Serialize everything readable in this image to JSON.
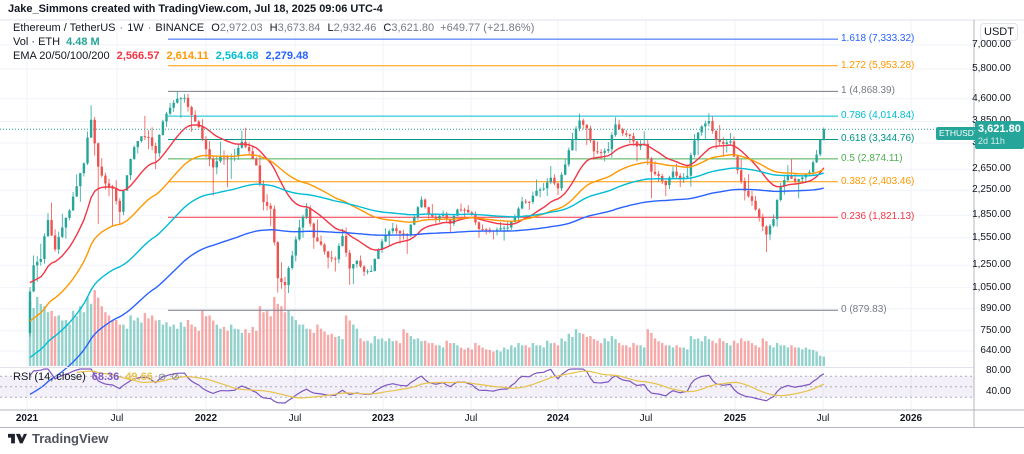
{
  "attribution": "Jake_Simmons created with TradingView.com, Jul 18, 2025 09:06 UTC-4",
  "legend": {
    "symbol_title": "Ethereum / TetherUS",
    "sep": "·",
    "interval": "1W",
    "exchange": "BINANCE",
    "ohlc": [
      [
        "O",
        "2,972.03"
      ],
      [
        "H",
        "3,673.84"
      ],
      [
        "L",
        "2,932.46"
      ],
      [
        "C",
        "3,621.80"
      ]
    ],
    "change": "+649.77 (+21.86%)",
    "volume_row": {
      "label": "Vol · ETH",
      "value": "4.48 M",
      "color": "#26a69a"
    },
    "ema_row": {
      "label": "EMA 20/50/100/200",
      "values": [
        {
          "text": "2,566.57",
          "color": "#f23645"
        },
        {
          "text": "2,614.11",
          "color": "#ff9800"
        },
        {
          "text": "2,564.68",
          "color": "#00bcd4"
        },
        {
          "text": "2,279.48",
          "color": "#2962ff"
        }
      ]
    }
  },
  "rsi_legend": {
    "label": "RSI (14, close)",
    "values": [
      {
        "text": "68.36",
        "color": "#7e57c2"
      },
      {
        "text": "49.66",
        "color": "#e8c34a"
      }
    ],
    "icons": [
      "visibility-toggle",
      "visibility-toggle"
    ]
  },
  "fib_levels": [
    {
      "label": "1.618 (7,333.32)",
      "value": 7333.32,
      "color": "#2962ff"
    },
    {
      "label": "1.272 (5,953.28)",
      "value": 5953.28,
      "color": "#ff9800"
    },
    {
      "label": "1 (4,868.39)",
      "value": 4868.39,
      "color": "#787b86"
    },
    {
      "label": "0.786 (4,014.84)",
      "value": 4014.84,
      "color": "#00bcd4"
    },
    {
      "label": "0.618 (3,344.76)",
      "value": 3344.76,
      "color": "#009688"
    },
    {
      "label": "0.5 (2,874.11)",
      "value": 2874.11,
      "color": "#4caf50"
    },
    {
      "label": "0.382 (2,403.46)",
      "value": 2403.46,
      "color": "#ff9800"
    },
    {
      "label": "0.236 (1,821.13)",
      "value": 1821.13,
      "color": "#f23645"
    },
    {
      "label": "0 (879.83)",
      "value": 879.83,
      "color": "#787b86"
    }
  ],
  "price_axis": {
    "currency": "USDT",
    "ticks": [
      {
        "label": "7,000.00",
        "value": 7000
      },
      {
        "label": "5,800.00",
        "value": 5800
      },
      {
        "label": "4,600.00",
        "value": 4600
      },
      {
        "label": "3,850.00",
        "value": 3850
      },
      {
        "label": "3,250.00",
        "value": 3250
      },
      {
        "label": "2,650.00",
        "value": 2650
      },
      {
        "label": "2,250.00",
        "value": 2250
      },
      {
        "label": "1,850.00",
        "value": 1850
      },
      {
        "label": "1,550.00",
        "value": 1550
      },
      {
        "label": "1,250.00",
        "value": 1250
      },
      {
        "label": "1,050.00",
        "value": 1050
      },
      {
        "label": "890.00",
        "value": 890
      },
      {
        "label": "750.00",
        "value": 750
      },
      {
        "label": "640.00",
        "value": 640
      }
    ],
    "rsi_ticks": [
      {
        "label": "80.00",
        "value": 80
      },
      {
        "label": "40.00",
        "value": 40
      }
    ],
    "last": {
      "symbol": "ETHUSDT",
      "price": "3,621.80",
      "countdown": "2d 11h",
      "color": "#26a69a"
    }
  },
  "time_axis": [
    {
      "label": "2021",
      "year": true
    },
    {
      "label": "Jul",
      "year": false
    },
    {
      "label": "2022",
      "year": true
    },
    {
      "label": "Jul",
      "year": false
    },
    {
      "label": "2023",
      "year": true
    },
    {
      "label": "Jul",
      "year": false
    },
    {
      "label": "2024",
      "year": true
    },
    {
      "label": "Jul",
      "year": false
    },
    {
      "label": "2025",
      "year": true
    },
    {
      "label": "Jul",
      "year": false
    },
    {
      "label": "2026",
      "year": true
    }
  ],
  "footer": {
    "name": "TradingView"
  },
  "colors": {
    "up": "#26a69a",
    "down": "#ef5350",
    "vol_up": "rgba(38,166,154,0.5)",
    "vol_down": "rgba(239,83,80,0.5)",
    "ema": [
      "#f23645",
      "#ff9800",
      "#00bcd4",
      "#2962ff"
    ],
    "rsi_line": "#7e57c2",
    "rsi_ma": "#e8c34a",
    "rsi_band": "rgba(126,87,194,0.09)",
    "grid": "#f0f3fa",
    "border": "#e0e3eb",
    "axis_border": "#b2b5be",
    "text_dark": "#131722",
    "text_gray": "#787b86"
  },
  "chart_data": {
    "type": "candlestick",
    "symbol": "ETHUSDT",
    "exchange": "BINANCE",
    "interval": "1W",
    "price_scale": "log",
    "y_axis": "USDT",
    "x_range": [
      "2021-01",
      "2025-07"
    ],
    "note": "OHLC and volume estimated from chart at biweekly resolution; rendered interpolated to weekly",
    "columns": [
      "open",
      "high",
      "low",
      "close",
      "volume_m_eth"
    ],
    "candles": [
      [
        737,
        1350,
        716,
        1250,
        28
      ],
      [
        1250,
        1480,
        1100,
        1314,
        30
      ],
      [
        1314,
        1880,
        1266,
        1780,
        26
      ],
      [
        1780,
        2042,
        1390,
        1416,
        24
      ],
      [
        1416,
        1870,
        1365,
        1680,
        22
      ],
      [
        1680,
        1943,
        1540,
        1919,
        20
      ],
      [
        1919,
        2545,
        1914,
        2320,
        24
      ],
      [
        2320,
        2798,
        2055,
        2773,
        26
      ],
      [
        2773,
        4372,
        2740,
        3900,
        30
      ],
      [
        3900,
        3990,
        1728,
        2706,
        33
      ],
      [
        2706,
        2891,
        2260,
        2370,
        26
      ],
      [
        2370,
        2460,
        1700,
        2274,
        22
      ],
      [
        2274,
        2430,
        1718,
        1900,
        20
      ],
      [
        1900,
        2450,
        1850,
        2530,
        18
      ],
      [
        2530,
        3190,
        2438,
        3150,
        22
      ],
      [
        3150,
        3386,
        3000,
        3430,
        21
      ],
      [
        3430,
        4028,
        3100,
        3400,
        23
      ],
      [
        3400,
        3680,
        2652,
        3001,
        22
      ],
      [
        3001,
        3900,
        2917,
        3850,
        20
      ],
      [
        3850,
        4460,
        3690,
        4288,
        19
      ],
      [
        4288,
        4868,
        4150,
        4600,
        18
      ],
      [
        4600,
        4770,
        3959,
        4631,
        19
      ],
      [
        4631,
        4780,
        3550,
        4050,
        20
      ],
      [
        4050,
        4200,
        3650,
        3683,
        17
      ],
      [
        3683,
        3917,
        2900,
        3100,
        24
      ],
      [
        3100,
        3300,
        2160,
        2688,
        22
      ],
      [
        2688,
        3283,
        2550,
        2930,
        18
      ],
      [
        2930,
        3070,
        2300,
        2920,
        17
      ],
      [
        2920,
        3110,
        2458,
        2950,
        18
      ],
      [
        2950,
        3580,
        2850,
        3283,
        16
      ],
      [
        3283,
        3668,
        2950,
        3050,
        16
      ],
      [
        3050,
        3180,
        2729,
        2730,
        17
      ],
      [
        2730,
        2974,
        1920,
        2050,
        26
      ],
      [
        2050,
        2180,
        1703,
        1945,
        24
      ],
      [
        1945,
        1998,
        1010,
        1130,
        30
      ],
      [
        1130,
        1280,
        881,
        1071,
        26
      ],
      [
        1071,
        1400,
        1007,
        1350,
        24
      ],
      [
        1350,
        1786,
        1290,
        1681,
        20
      ],
      [
        1681,
        2030,
        1550,
        1950,
        18
      ],
      [
        1950,
        2000,
        1422,
        1554,
        16
      ],
      [
        1554,
        1789,
        1455,
        1470,
        18
      ],
      [
        1470,
        1490,
        1220,
        1329,
        15
      ],
      [
        1329,
        1400,
        1190,
        1310,
        14
      ],
      [
        1310,
        1663,
        1271,
        1573,
        13
      ],
      [
        1573,
        1680,
        1074,
        1220,
        22
      ],
      [
        1220,
        1300,
        1081,
        1297,
        18
      ],
      [
        1297,
        1350,
        1150,
        1190,
        12
      ],
      [
        1190,
        1250,
        1165,
        1196,
        11
      ],
      [
        1196,
        1430,
        1191,
        1410,
        13
      ],
      [
        1410,
        1674,
        1380,
        1586,
        12
      ],
      [
        1586,
        1743,
        1461,
        1670,
        12
      ],
      [
        1670,
        1720,
        1480,
        1605,
        11
      ],
      [
        1605,
        1650,
        1368,
        1590,
        16
      ],
      [
        1590,
        1846,
        1560,
        1822,
        13
      ],
      [
        1822,
        2141,
        1782,
        2090,
        12
      ],
      [
        2090,
        2110,
        1800,
        1871,
        11
      ],
      [
        1871,
        2018,
        1721,
        1800,
        10
      ],
      [
        1800,
        1920,
        1751,
        1874,
        9
      ],
      [
        1874,
        1900,
        1620,
        1730,
        11
      ],
      [
        1730,
        1948,
        1700,
        1934,
        10
      ],
      [
        1934,
        2029,
        1825,
        1930,
        8
      ],
      [
        1930,
        2000,
        1840,
        1856,
        8
      ],
      [
        1856,
        1908,
        1550,
        1660,
        10
      ],
      [
        1660,
        1720,
        1590,
        1652,
        8
      ],
      [
        1652,
        1680,
        1531,
        1630,
        7
      ],
      [
        1630,
        1753,
        1580,
        1671,
        7
      ],
      [
        1671,
        1760,
        1517,
        1680,
        8
      ],
      [
        1680,
        1865,
        1650,
        1815,
        9
      ],
      [
        1815,
        2135,
        1755,
        2060,
        10
      ],
      [
        2060,
        2100,
        1930,
        2051,
        9
      ],
      [
        2051,
        2445,
        2015,
        2240,
        10
      ],
      [
        2240,
        2380,
        2130,
        2281,
        9
      ],
      [
        2281,
        2717,
        2150,
        2480,
        11
      ],
      [
        2480,
        2550,
        2166,
        2283,
        10
      ],
      [
        2283,
        2880,
        2235,
        2750,
        12
      ],
      [
        2750,
        3522,
        2700,
        3341,
        14
      ],
      [
        3341,
        4093,
        3053,
        3880,
        16
      ],
      [
        3880,
        3940,
        3200,
        3647,
        14
      ],
      [
        3647,
        3728,
        2852,
        3050,
        13
      ],
      [
        3050,
        3290,
        2862,
        3014,
        11
      ],
      [
        3014,
        3280,
        2817,
        3100,
        12
      ],
      [
        3100,
        3977,
        2900,
        3762,
        13
      ],
      [
        3762,
        3900,
        3430,
        3510,
        10
      ],
      [
        3510,
        3600,
        3240,
        3438,
        9
      ],
      [
        3438,
        3530,
        2818,
        3170,
        10
      ],
      [
        3170,
        3563,
        3080,
        3232,
        9
      ],
      [
        3232,
        3330,
        2111,
        2600,
        16
      ],
      [
        2600,
        2820,
        2400,
        2513,
        12
      ],
      [
        2513,
        2560,
        2150,
        2340,
        10
      ],
      [
        2340,
        2704,
        2270,
        2602,
        9
      ],
      [
        2602,
        2768,
        2306,
        2450,
        9
      ],
      [
        2450,
        2750,
        2380,
        2518,
        8
      ],
      [
        2518,
        3489,
        2313,
        3320,
        13
      ],
      [
        3320,
        3740,
        2960,
        3703,
        12
      ],
      [
        3703,
        4107,
        3360,
        3860,
        13
      ],
      [
        3860,
        4000,
        3101,
        3336,
        11
      ],
      [
        3336,
        3744,
        2924,
        3230,
        12
      ],
      [
        3230,
        3520,
        3020,
        3298,
        10
      ],
      [
        3298,
        3420,
        2560,
        2630,
        11
      ],
      [
        2630,
        2860,
        2076,
        2237,
        12
      ],
      [
        2237,
        2550,
        1990,
        2070,
        11
      ],
      [
        2070,
        2150,
        1760,
        1823,
        9
      ],
      [
        1823,
        1870,
        1385,
        1590,
        12
      ],
      [
        1590,
        1860,
        1520,
        1794,
        9
      ],
      [
        1794,
        2380,
        1689,
        2320,
        10
      ],
      [
        2320,
        2738,
        2170,
        2530,
        9
      ],
      [
        2530,
        2880,
        2380,
        2410,
        9
      ],
      [
        2410,
        2520,
        2112,
        2486,
        8
      ],
      [
        2486,
        2640,
        2380,
        2590,
        8
      ],
      [
        2590,
        3080,
        2520,
        2972,
        7
      ],
      [
        2972.03,
        3673.84,
        2932.46,
        3621.8,
        4.48
      ]
    ],
    "indicators": {
      "ema_periods": [
        20,
        50,
        100,
        200
      ],
      "ema_last_values": [
        2566.57,
        2614.11,
        2564.68,
        2279.48
      ],
      "rsi": {
        "period": 14,
        "source": "close",
        "last": 68.36,
        "ma_last": 49.66,
        "levels": [
          70,
          50,
          30
        ]
      },
      "volume_last_m": 4.48
    },
    "fib_retracement": {
      "level_1_price": 4868.39,
      "level_0_price": 879.83,
      "extended_right": true
    }
  }
}
